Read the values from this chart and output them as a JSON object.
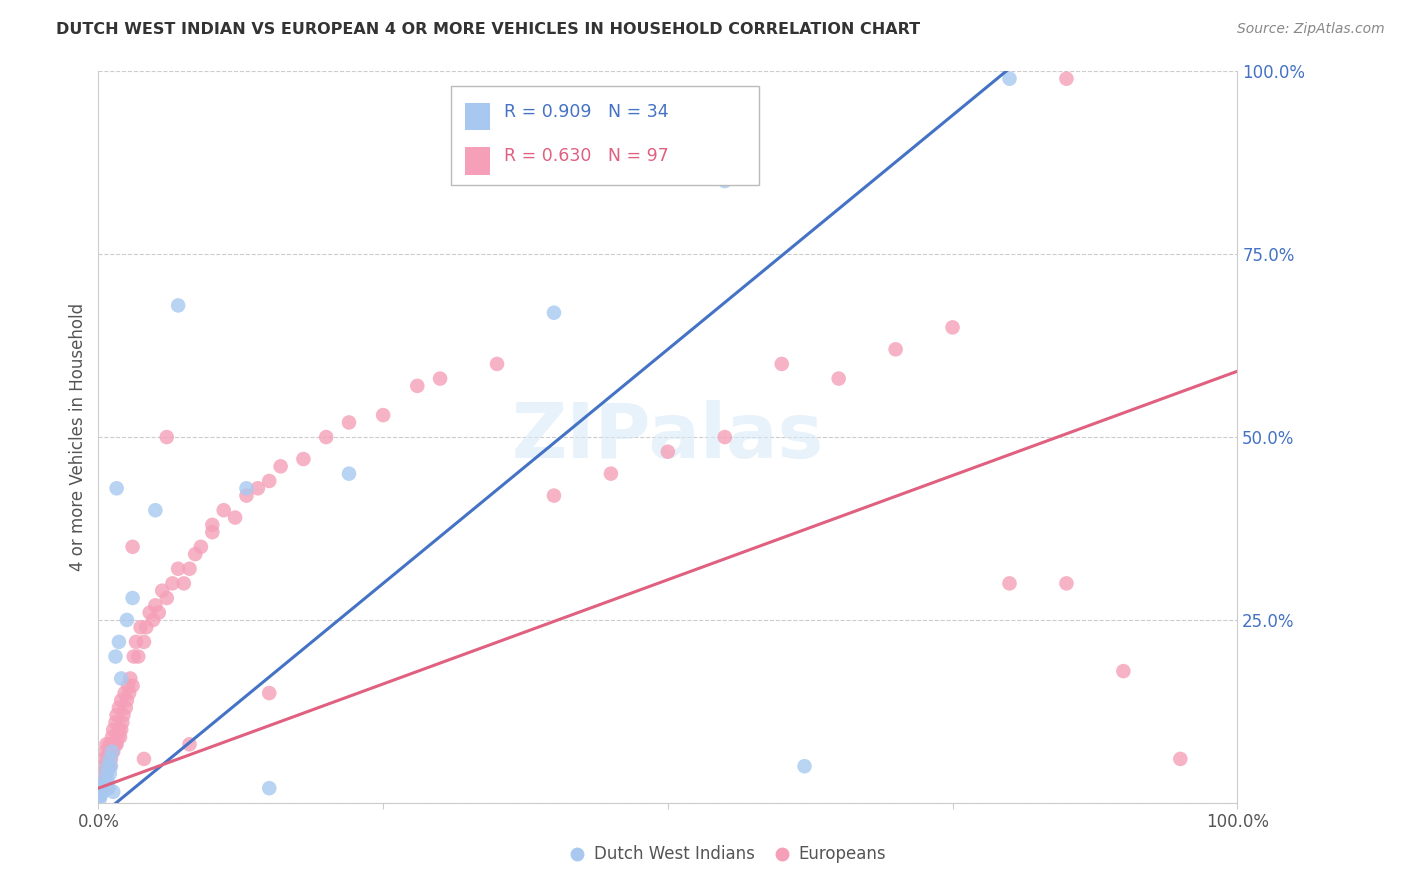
{
  "title": "DUTCH WEST INDIAN VS EUROPEAN 4 OR MORE VEHICLES IN HOUSEHOLD CORRELATION CHART",
  "source": "Source: ZipAtlas.com",
  "ylabel": "4 or more Vehicles in Household",
  "watermark": "ZIPalas",
  "legend_blue_label": "Dutch West Indians",
  "legend_pink_label": "Europeans",
  "legend_blue_r": "R = 0.909",
  "legend_blue_n": "N = 34",
  "legend_pink_r": "R = 0.630",
  "legend_pink_n": "N = 97",
  "blue_scatter_color": "#A8C8F0",
  "pink_scatter_color": "#F5A0B8",
  "blue_line_color": "#4472C4",
  "pink_line_color": "#E06080",
  "background_color": "#FFFFFF",
  "grid_color": "#CCCCCC",
  "ytick_color": "#4472C4",
  "blue_slope": 1.28,
  "blue_intercept": -0.02,
  "pink_slope": 0.57,
  "pink_intercept": 0.02,
  "blue_x": [
    0.001,
    0.002,
    0.003,
    0.003,
    0.004,
    0.005,
    0.005,
    0.006,
    0.006,
    0.007,
    0.007,
    0.008,
    0.008,
    0.009,
    0.01,
    0.01,
    0.011,
    0.012,
    0.013,
    0.015,
    0.016,
    0.018,
    0.02,
    0.025,
    0.03,
    0.05,
    0.07,
    0.13,
    0.15,
    0.22,
    0.4,
    0.55,
    0.62,
    0.8
  ],
  "blue_y": [
    0.005,
    0.01,
    0.015,
    0.02,
    0.015,
    0.02,
    0.025,
    0.02,
    0.03,
    0.02,
    0.04,
    0.03,
    0.05,
    0.02,
    0.04,
    0.06,
    0.05,
    0.07,
    0.015,
    0.2,
    0.43,
    0.22,
    0.17,
    0.25,
    0.28,
    0.4,
    0.68,
    0.43,
    0.02,
    0.45,
    0.67,
    0.85,
    0.05,
    0.99
  ],
  "pink_x": [
    0.001,
    0.001,
    0.002,
    0.002,
    0.003,
    0.003,
    0.004,
    0.004,
    0.005,
    0.005,
    0.006,
    0.006,
    0.007,
    0.007,
    0.008,
    0.008,
    0.009,
    0.009,
    0.01,
    0.01,
    0.01,
    0.011,
    0.012,
    0.012,
    0.013,
    0.013,
    0.014,
    0.015,
    0.015,
    0.016,
    0.016,
    0.017,
    0.018,
    0.018,
    0.019,
    0.02,
    0.02,
    0.021,
    0.022,
    0.023,
    0.024,
    0.025,
    0.026,
    0.027,
    0.028,
    0.03,
    0.031,
    0.033,
    0.035,
    0.037,
    0.04,
    0.042,
    0.045,
    0.048,
    0.05,
    0.053,
    0.056,
    0.06,
    0.065,
    0.07,
    0.075,
    0.08,
    0.085,
    0.09,
    0.1,
    0.11,
    0.12,
    0.13,
    0.14,
    0.15,
    0.16,
    0.18,
    0.2,
    0.22,
    0.25,
    0.28,
    0.3,
    0.35,
    0.4,
    0.45,
    0.5,
    0.55,
    0.6,
    0.65,
    0.7,
    0.75,
    0.8,
    0.85,
    0.9,
    0.95,
    0.03,
    0.04,
    0.06,
    0.08,
    0.1,
    0.15,
    0.85
  ],
  "pink_y": [
    0.01,
    0.02,
    0.02,
    0.03,
    0.02,
    0.04,
    0.03,
    0.05,
    0.03,
    0.06,
    0.04,
    0.07,
    0.04,
    0.08,
    0.05,
    0.06,
    0.05,
    0.07,
    0.05,
    0.07,
    0.08,
    0.06,
    0.07,
    0.09,
    0.07,
    0.1,
    0.08,
    0.08,
    0.11,
    0.08,
    0.12,
    0.09,
    0.1,
    0.13,
    0.09,
    0.1,
    0.14,
    0.11,
    0.12,
    0.15,
    0.13,
    0.14,
    0.16,
    0.15,
    0.17,
    0.16,
    0.2,
    0.22,
    0.2,
    0.24,
    0.22,
    0.24,
    0.26,
    0.25,
    0.27,
    0.26,
    0.29,
    0.28,
    0.3,
    0.32,
    0.3,
    0.32,
    0.34,
    0.35,
    0.37,
    0.4,
    0.39,
    0.42,
    0.43,
    0.44,
    0.46,
    0.47,
    0.5,
    0.52,
    0.53,
    0.57,
    0.58,
    0.6,
    0.42,
    0.45,
    0.48,
    0.5,
    0.6,
    0.58,
    0.62,
    0.65,
    0.3,
    0.99,
    0.18,
    0.06,
    0.35,
    0.06,
    0.5,
    0.08,
    0.38,
    0.15,
    0.3
  ]
}
